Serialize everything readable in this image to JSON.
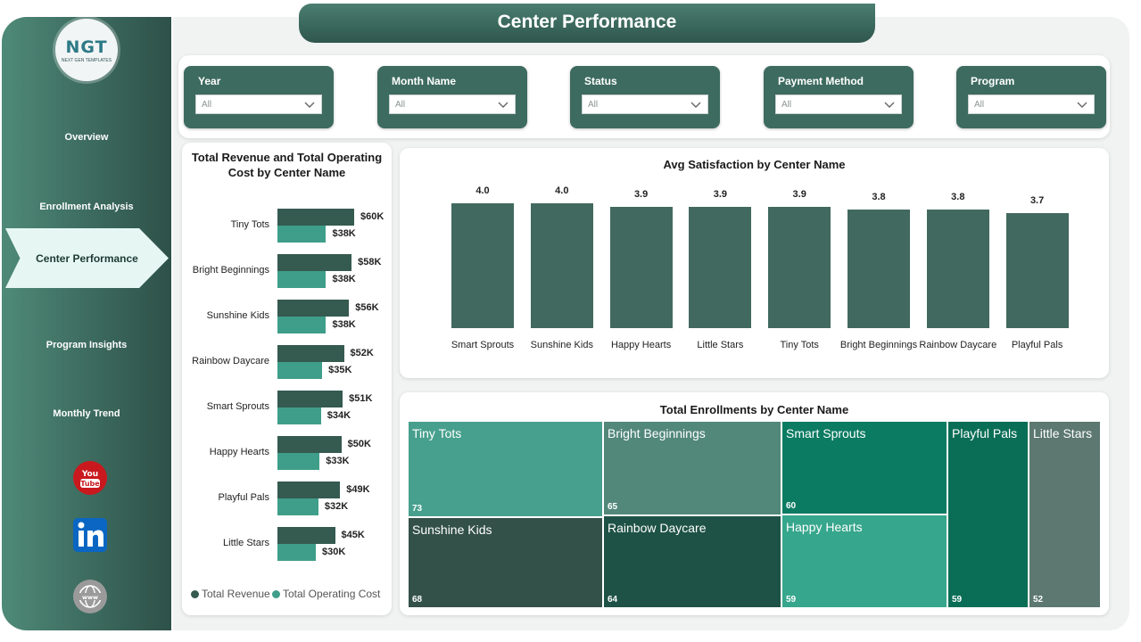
{
  "page_title": "Center Performance",
  "logo": {
    "mark": "NGT",
    "sub": "NEXT GEN TEMPLATES"
  },
  "nav": {
    "items": [
      {
        "label": "Overview"
      },
      {
        "label": "Enrollment Analysis"
      },
      {
        "label": "Center Performance",
        "active": true
      },
      {
        "label": "Program Insights"
      },
      {
        "label": "Monthly Trend"
      }
    ]
  },
  "social_icons": [
    "youtube-icon",
    "linkedin-icon",
    "website-globe-icon"
  ],
  "filters": [
    {
      "label": "Year",
      "value": "All"
    },
    {
      "label": "Month Name",
      "value": "All"
    },
    {
      "label": "Status",
      "value": "All"
    },
    {
      "label": "Payment Method",
      "value": "All"
    },
    {
      "label": "Program",
      "value": "All"
    }
  ],
  "colors": {
    "revenue": "#355a50",
    "operating_cost": "#3f9e8a",
    "satisfaction_bar": "#42695f",
    "accent": "#3d6b5f"
  },
  "chart_data": [
    {
      "type": "bar",
      "orientation": "horizontal",
      "title": "Total Revenue and Total Operating Cost by Center Name",
      "categories": [
        "Tiny Tots",
        "Bright Beginnings",
        "Sunshine Kids",
        "Rainbow Daycare",
        "Smart Sprouts",
        "Happy Hearts",
        "Playful Pals",
        "Little Stars"
      ],
      "series": [
        {
          "name": "Total Revenue",
          "values": [
            60,
            58,
            56,
            52,
            51,
            50,
            49,
            45
          ],
          "labels": [
            "$60K",
            "$58K",
            "$56K",
            "$52K",
            "$51K",
            "$50K",
            "$49K",
            "$45K"
          ]
        },
        {
          "name": "Total Operating Cost",
          "values": [
            38,
            38,
            38,
            35,
            34,
            33,
            32,
            30
          ],
          "labels": [
            "$38K",
            "$38K",
            "$38K",
            "$35K",
            "$34K",
            "$33K",
            "$32K",
            "$30K"
          ]
        }
      ],
      "legend": "bottom"
    },
    {
      "type": "bar",
      "orientation": "vertical",
      "title": "Avg Satisfaction by Center Name",
      "categories": [
        "Smart Sprouts",
        "Sunshine Kids",
        "Happy Hearts",
        "Little Stars",
        "Tiny Tots",
        "Bright Beginnings",
        "Rainbow Daycare",
        "Playful Pals"
      ],
      "values": [
        4.0,
        4.0,
        3.9,
        3.9,
        3.9,
        3.8,
        3.8,
        3.7
      ],
      "labels": [
        "4.0",
        "4.0",
        "3.9",
        "3.9",
        "3.9",
        "3.8",
        "3.8",
        "3.7"
      ]
    },
    {
      "type": "treemap",
      "title": "Total Enrollments by Center Name",
      "items": [
        {
          "name": "Tiny Tots",
          "value": 73
        },
        {
          "name": "Sunshine Kids",
          "value": 68
        },
        {
          "name": "Bright Beginnings",
          "value": 65
        },
        {
          "name": "Rainbow Daycare",
          "value": 64
        },
        {
          "name": "Smart Sprouts",
          "value": 60
        },
        {
          "name": "Happy Hearts",
          "value": 59
        },
        {
          "name": "Playful Pals",
          "value": 59
        },
        {
          "name": "Little Stars",
          "value": 52
        }
      ]
    }
  ]
}
